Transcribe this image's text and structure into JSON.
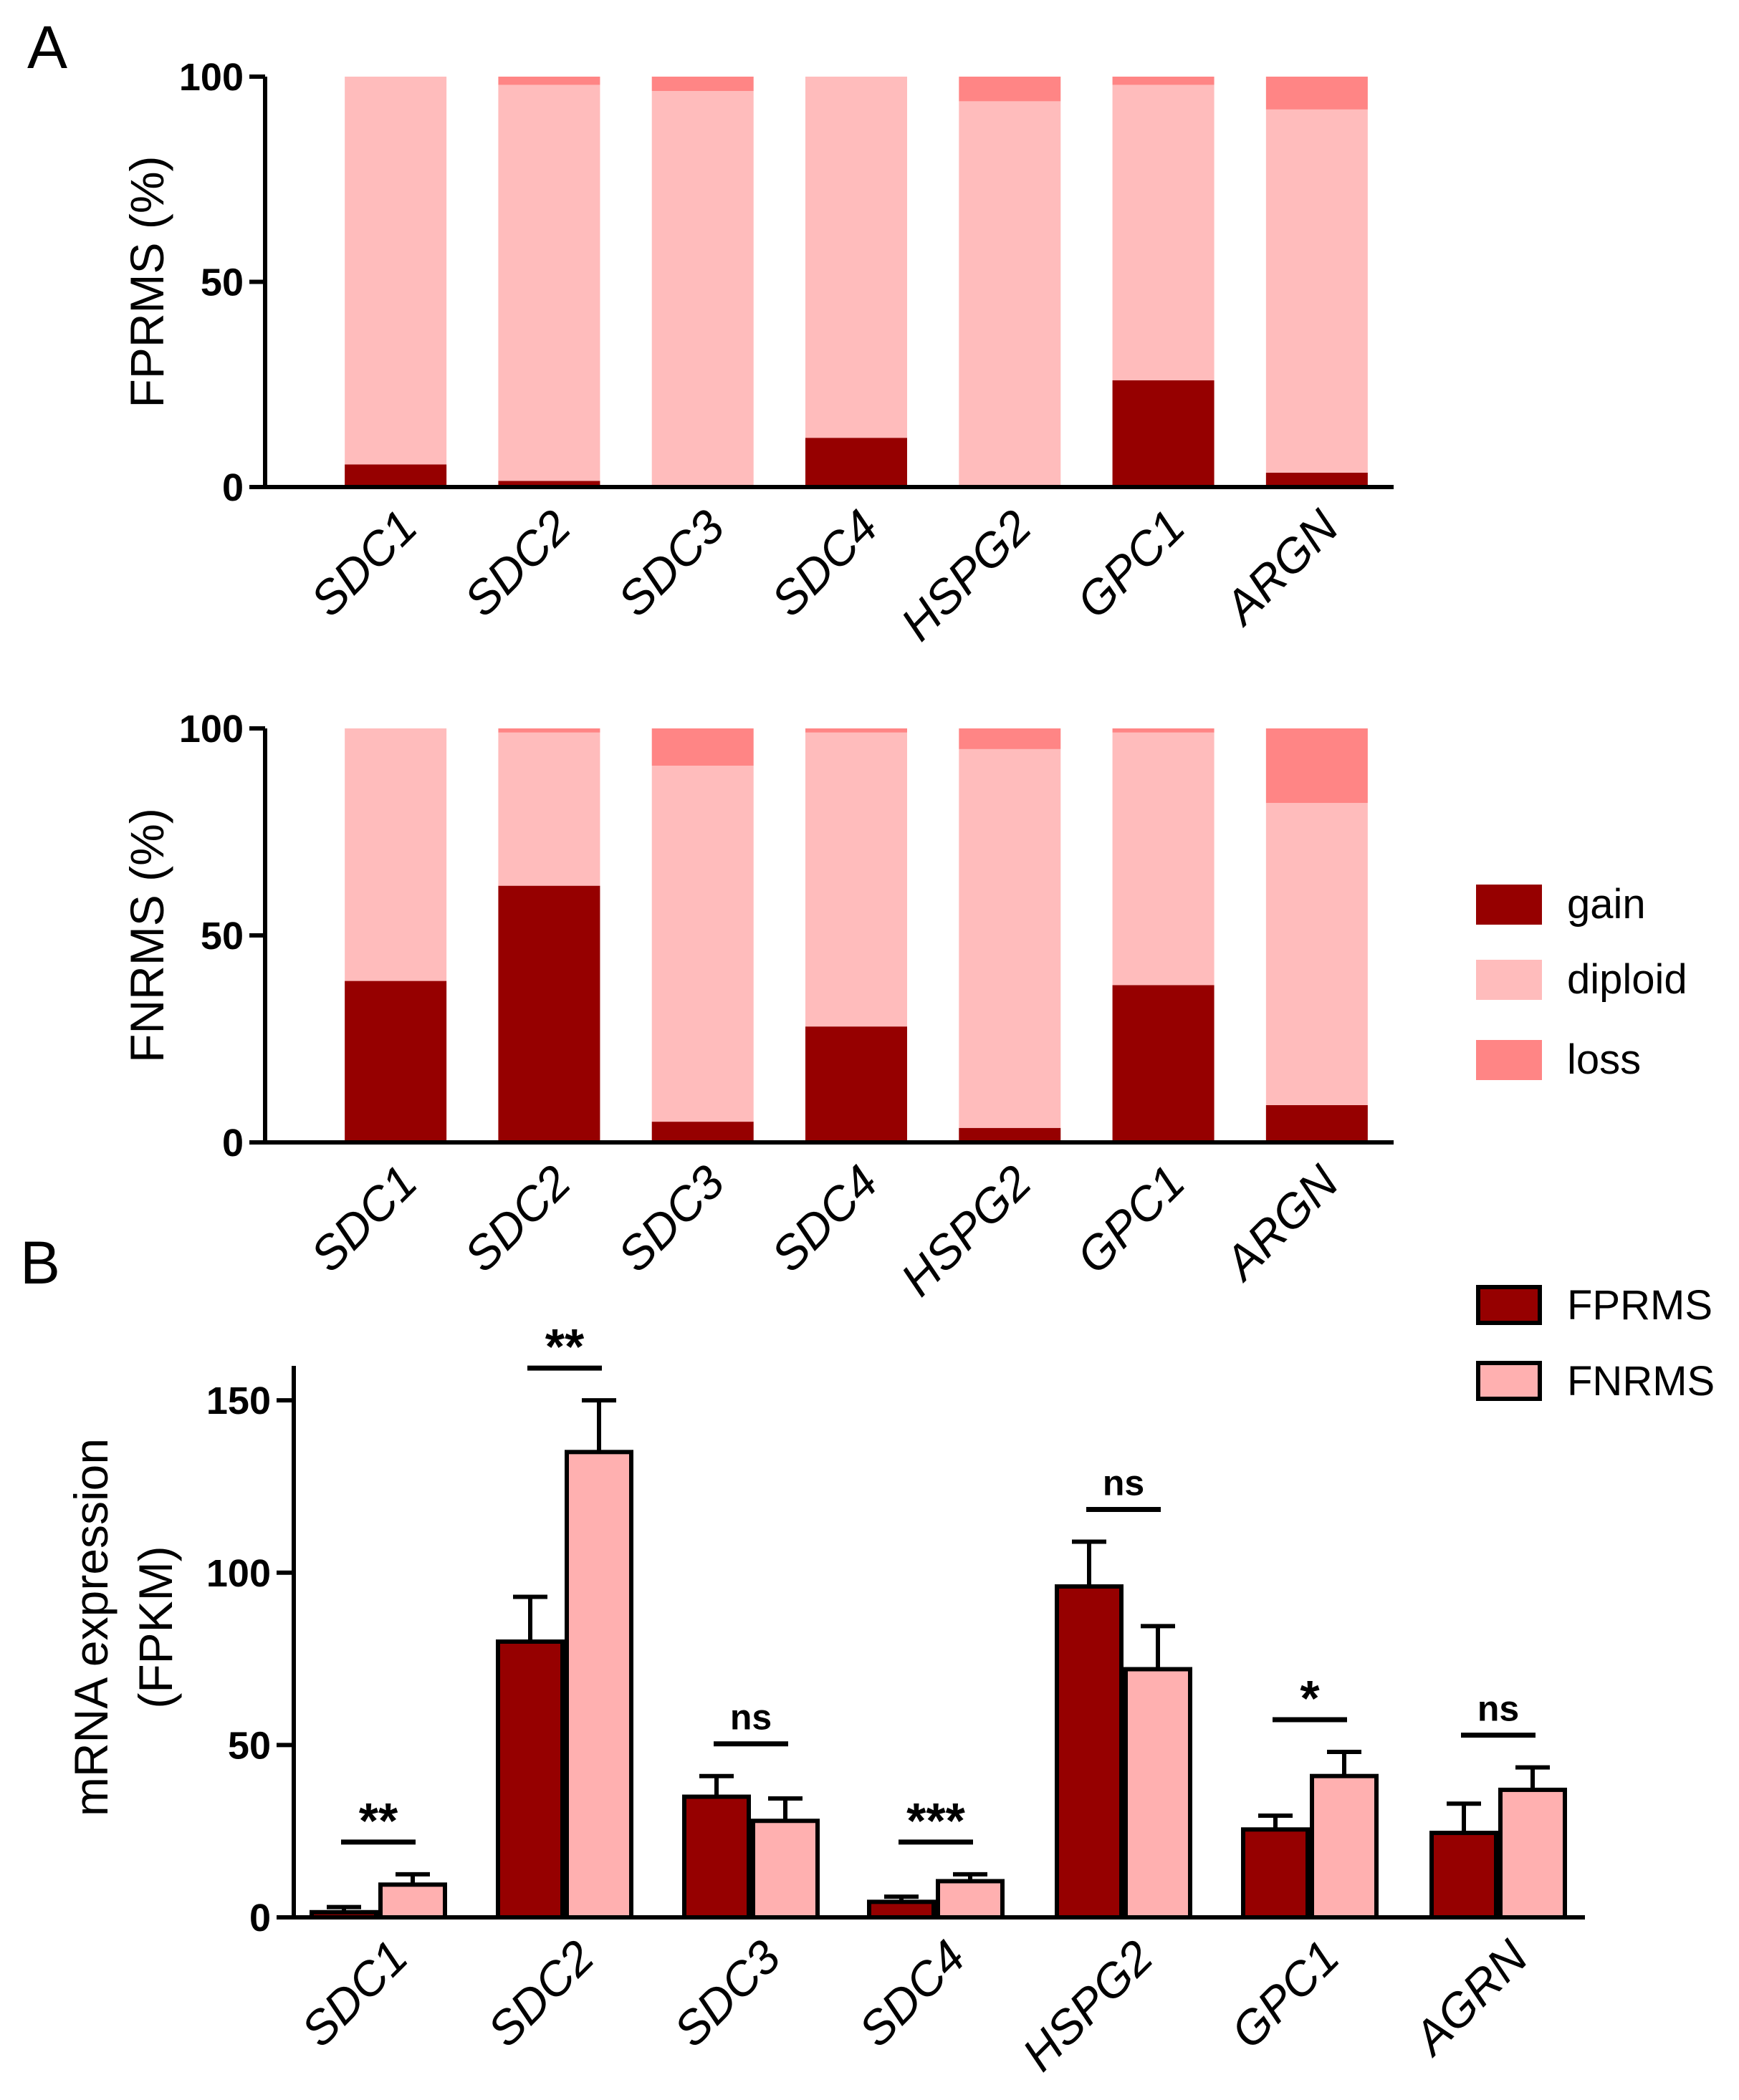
{
  "panel_labels": {
    "a": "A",
    "b": "B"
  },
  "colors": {
    "gain": "#960000",
    "diploid": "#ffbcbc",
    "loss": "#ff8585",
    "fprms_bar": "#960000",
    "fnrms_bar": "#ffb0b0",
    "axis": "#000000"
  },
  "chart_data": [
    {
      "type": "bar",
      "stacked": true,
      "panel": "A",
      "ylabel": "FPRMS (%)",
      "ylim": [
        0,
        100
      ],
      "yticks": [
        0,
        50,
        100
      ],
      "categories": [
        "SDC1",
        "SDC2",
        "SDC3",
        "SDC4",
        "HSPG2",
        "GPC1",
        "ARGN"
      ],
      "series": [
        {
          "name": "gain",
          "color": "#960000",
          "values": [
            5.5,
            1.5,
            0,
            12,
            0,
            26,
            3.5
          ]
        },
        {
          "name": "diploid",
          "color": "#ffbcbc",
          "values": [
            94.5,
            96.5,
            96.5,
            88,
            94,
            72,
            88.5
          ]
        },
        {
          "name": "loss",
          "color": "#ff8585",
          "values": [
            0,
            2,
            3.5,
            0,
            6,
            2,
            8
          ]
        }
      ]
    },
    {
      "type": "bar",
      "stacked": true,
      "panel": "A",
      "ylabel": "FNRMS (%)",
      "ylim": [
        0,
        100
      ],
      "yticks": [
        0,
        50,
        100
      ],
      "categories": [
        "SDC1",
        "SDC2",
        "SDC3",
        "SDC4",
        "HSPG2",
        "GPC1",
        "ARGN"
      ],
      "legend": {
        "position": "right",
        "entries": [
          "gain",
          "diploid",
          "loss"
        ]
      },
      "series": [
        {
          "name": "gain",
          "color": "#960000",
          "values": [
            39,
            62,
            5,
            28,
            3.5,
            38,
            9
          ]
        },
        {
          "name": "diploid",
          "color": "#ffbcbc",
          "values": [
            61,
            37,
            86,
            71,
            91.5,
            61,
            73
          ]
        },
        {
          "name": "loss",
          "color": "#ff8585",
          "values": [
            0,
            1,
            9,
            1,
            5,
            1,
            18
          ]
        }
      ]
    },
    {
      "type": "bar",
      "panel": "B",
      "ylabel_line1": "mRNA expression",
      "ylabel_line2": "(FPKM)",
      "ylim": [
        0,
        160
      ],
      "yticks": [
        0,
        50,
        100,
        150
      ],
      "categories": [
        "SDC1",
        "SDC2",
        "SDC3",
        "SDC4",
        "HSPG2",
        "GPC1",
        "AGRN"
      ],
      "legend": {
        "position": "top-right",
        "entries": [
          "FPRMS",
          "FNRMS"
        ]
      },
      "series": [
        {
          "name": "FPRMS",
          "color": "#960000",
          "values": [
            1.5,
            80,
            35,
            4.5,
            96,
            25.5,
            24.5
          ],
          "errors": [
            1.5,
            13,
            6,
            1.5,
            13,
            4,
            8.5
          ]
        },
        {
          "name": "FNRMS",
          "color": "#ffb0b0",
          "values": [
            9.5,
            135,
            28,
            10.5,
            72,
            41,
            37
          ],
          "errors": [
            3,
            15,
            6.5,
            2,
            12.5,
            7,
            6.5
          ]
        }
      ],
      "significance": [
        "**",
        "**",
        "ns",
        "***",
        "ns",
        "*",
        "ns"
      ]
    }
  ]
}
